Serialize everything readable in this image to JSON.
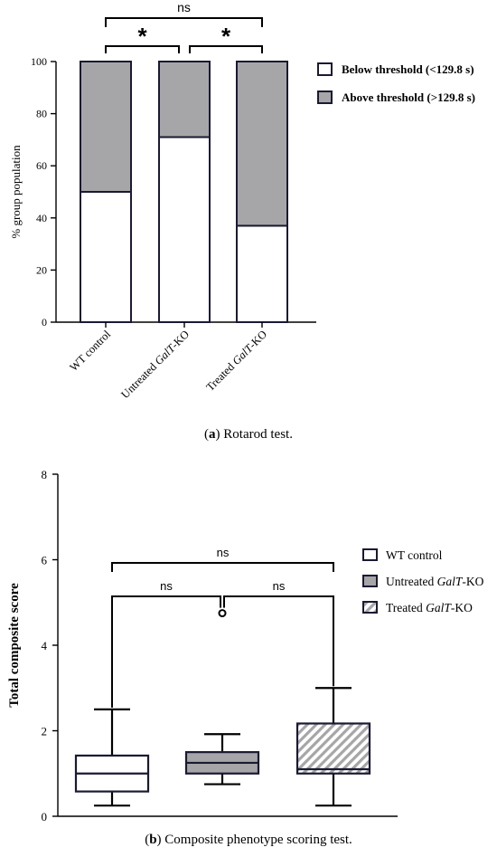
{
  "chart_data": [
    {
      "type": "bar",
      "stacked": true,
      "caption": {
        "letter": "a",
        "text": "Rotarod test."
      },
      "ylabel": "% group population",
      "ylim": [
        0,
        100
      ],
      "y_ticks": [
        "0",
        "20",
        "40",
        "60",
        "80",
        "100"
      ],
      "categories": [
        {
          "pre": "WT control",
          "italic": "",
          "post": ""
        },
        {
          "pre": "Untreated ",
          "italic": "GalT",
          "post": "-KO"
        },
        {
          "pre": "Treated ",
          "italic": "GalT",
          "post": "-KO"
        }
      ],
      "series": [
        {
          "name": "Below threshold (<129.8 s)",
          "values": [
            50,
            71,
            37
          ],
          "color": "#ffffff"
        },
        {
          "name": "Above threshold (>129.8 s)",
          "values": [
            50,
            29,
            63
          ],
          "color": "#a6a6a8"
        }
      ],
      "significance": [
        {
          "from": 0,
          "to": 2,
          "label": "ns"
        },
        {
          "from": 0,
          "to": 1,
          "label": "*"
        },
        {
          "from": 1,
          "to": 2,
          "label": "*"
        }
      ],
      "legend": "top-right",
      "grid": false
    },
    {
      "type": "box",
      "caption": {
        "letter": "b",
        "text": "Composite phenotype scoring test."
      },
      "ylabel": "Total composite score",
      "ylim": [
        0,
        8
      ],
      "y_ticks": [
        "0",
        "2",
        "4",
        "6",
        "8"
      ],
      "series": [
        {
          "pre": "WT control",
          "italic": "",
          "post": "",
          "fill": "#ffffff",
          "min": 0.25,
          "q1": 0.58,
          "median": 1.0,
          "q3": 1.42,
          "max": 2.5,
          "outliers": []
        },
        {
          "pre": "Untreated ",
          "italic": "GalT",
          "post": "-KO",
          "fill": "#a6a6a8",
          "min": 0.75,
          "q1": 1.0,
          "median": 1.25,
          "q3": 1.5,
          "max": 1.92,
          "outliers": [
            4.75
          ]
        },
        {
          "pre": "Treated ",
          "italic": "GalT",
          "post": "-KO",
          "fill": "hatch",
          "min": 0.25,
          "q1": 1.0,
          "median": 1.1,
          "q3": 2.17,
          "max": 3.0,
          "outliers": []
        }
      ],
      "significance": [
        {
          "from": 0,
          "to": 2,
          "label": "ns"
        },
        {
          "from": 0,
          "to": 1,
          "label": "ns"
        },
        {
          "from": 1,
          "to": 2,
          "label": "ns"
        }
      ],
      "legend": "right",
      "grid": false
    }
  ]
}
